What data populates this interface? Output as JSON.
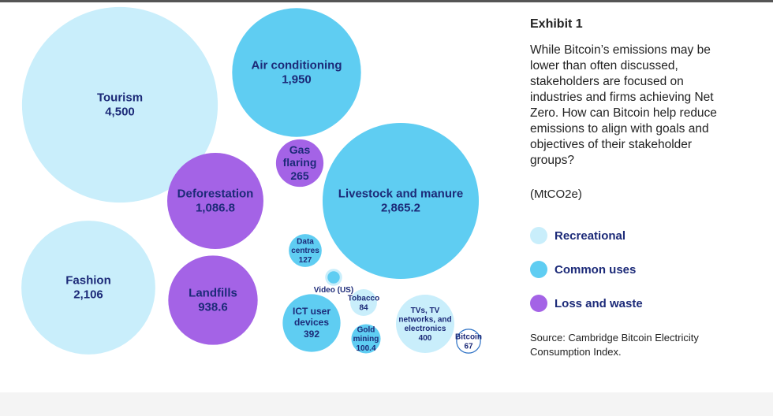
{
  "chart_data": {
    "type": "bubble",
    "title": "Exhibit 1",
    "subtitle": "While Bitcoin’s emissions may be lower than often discussed, stakeholders are focused on industries and firms achieving Net Zero. How can Bitcoin help reduce emissions to align with goals and objectives of their stakeholder groups?",
    "unit": "(MtCO2e)",
    "source": "Source: Cambridge Bitcoin Electricity Consumption Index.",
    "series": [
      {
        "name": "Recreational",
        "color": "#c9eefb",
        "categories": [
          "Tourism",
          "Fashion",
          "Tobacco",
          "TVs, TV networks, and electronics"
        ],
        "values": [
          4500,
          2106,
          84,
          400
        ],
        "value_labels": [
          "4,500",
          "2,106",
          "84",
          "400"
        ]
      },
      {
        "name": "Common uses",
        "color": "#5fcdf2",
        "categories": [
          "Air conditioning",
          "Livestock and manure",
          "Data centres",
          "Video (US)",
          "ICT user devices",
          "Gold mining"
        ],
        "values": [
          1950,
          2865.2,
          127,
          25,
          392,
          100.4
        ],
        "value_labels": [
          "1,950",
          "2,865.2",
          "127",
          null,
          "392",
          "100.4"
        ]
      },
      {
        "name": "Loss and waste",
        "color": "#a463e6",
        "categories": [
          "Deforestation",
          "Landfills",
          "Gas flaring"
        ],
        "values": [
          1086.8,
          938.6,
          265
        ],
        "value_labels": [
          "1,086.8",
          "938.6",
          "265"
        ]
      },
      {
        "color": "#ffffff",
        "categories": [
          "Bitcoin"
        ],
        "values": [
          67
        ],
        "value_labels": [
          "67"
        ]
      }
    ]
  }
}
